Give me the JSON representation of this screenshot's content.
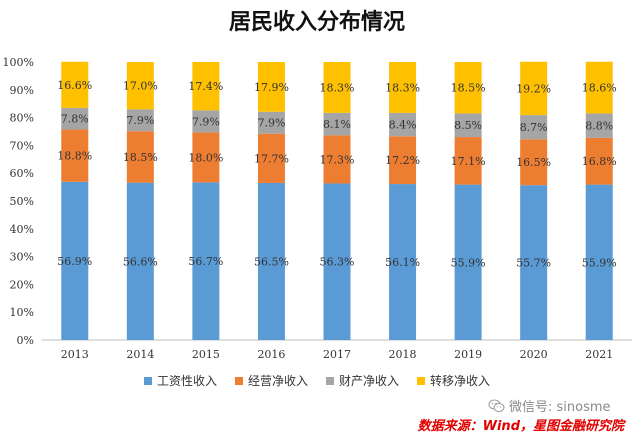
{
  "chart_data": {
    "type": "bar",
    "stacked": true,
    "title": "居民收入分布情况",
    "categories": [
      "2013",
      "2014",
      "2015",
      "2016",
      "2017",
      "2018",
      "2019",
      "2020",
      "2021"
    ],
    "series": [
      {
        "name": "工资性收入",
        "color": "#5B9BD5",
        "values": [
          56.9,
          56.6,
          56.7,
          56.5,
          56.3,
          56.1,
          55.9,
          55.7,
          55.9
        ]
      },
      {
        "name": "经营净收入",
        "color": "#ED7D31",
        "values": [
          18.8,
          18.5,
          18.0,
          17.7,
          17.3,
          17.2,
          17.1,
          16.5,
          16.8
        ]
      },
      {
        "name": "财产净收入",
        "color": "#A5A5A5",
        "values": [
          7.8,
          7.9,
          7.9,
          7.9,
          8.1,
          8.4,
          8.5,
          8.7,
          8.8
        ]
      },
      {
        "name": "转移净收入",
        "color": "#FFC000",
        "values": [
          16.6,
          17.0,
          17.4,
          17.9,
          18.3,
          18.3,
          18.5,
          19.2,
          18.6
        ]
      }
    ],
    "ylim": [
      0,
      100
    ],
    "yticks": [
      "0%",
      "10%",
      "20%",
      "30%",
      "40%",
      "50%",
      "60%",
      "70%",
      "80%",
      "90%",
      "100%"
    ],
    "grid": false,
    "legend_position": "bottom"
  },
  "watermark": {
    "text": "微信号: sinosme",
    "icon": "wechat-icon"
  },
  "source": "数据来源：Wind，星图金融研究院"
}
